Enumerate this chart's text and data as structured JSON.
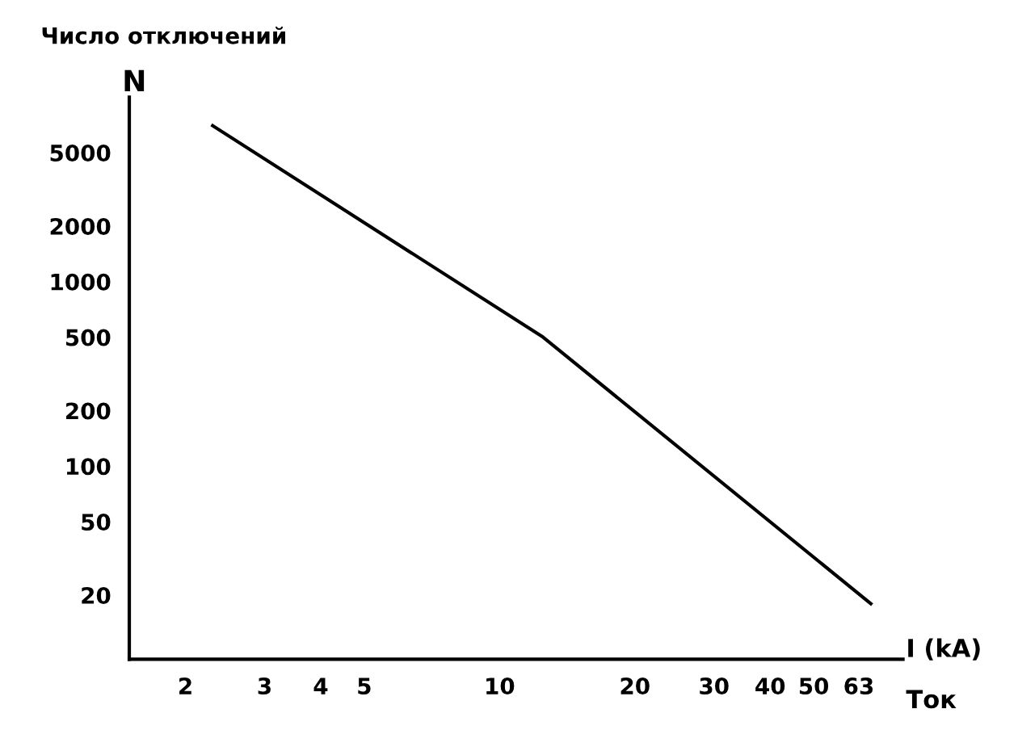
{
  "chart_data": {
    "type": "line",
    "title": "Число отключений",
    "ylabel": "N",
    "xlabel": "I (kA)",
    "annotations": [
      "Ток"
    ],
    "log": "xy",
    "grid": false,
    "marker": "none",
    "line_style": "solid",
    "series": [
      {
        "color": "#000000",
        "x": [
          2.3,
          12.5,
          67
        ],
        "values": [
          7000,
          500,
          18
        ]
      }
    ],
    "xlim": [
      1.5,
      79
    ],
    "xticks": [
      2,
      3,
      4,
      5,
      10,
      20,
      30,
      40,
      50,
      63
    ],
    "ylim": [
      9,
      10000
    ],
    "yticks": [
      20,
      50,
      100,
      200,
      500,
      1000,
      2000,
      5000
    ]
  }
}
